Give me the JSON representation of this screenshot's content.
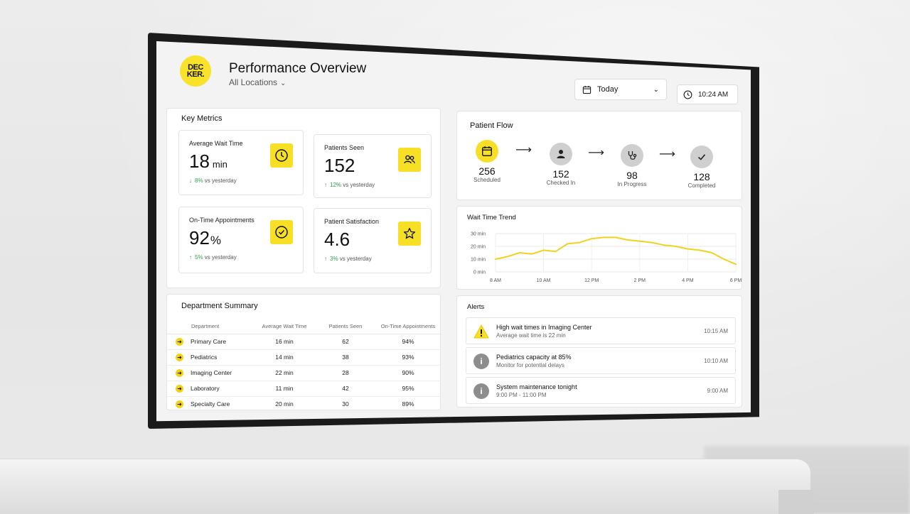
{
  "header": {
    "logo_line1": "DEC",
    "logo_line2": "KER.",
    "title": "Performance Overview",
    "location": "All Locations",
    "date_filter": "Today",
    "time": "10:24 AM"
  },
  "key_metrics": {
    "title": "Key Metrics",
    "cards": [
      {
        "label": "Average Wait Time",
        "value": "18",
        "unit": "min",
        "change": "8%",
        "direction": "down",
        "compare": "vs yesterday",
        "icon": "clock-icon"
      },
      {
        "label": "Patients Seen",
        "value": "152",
        "unit": "",
        "change": "12%",
        "direction": "up",
        "compare": "vs yesterday",
        "icon": "users-icon"
      },
      {
        "label": "On-Time Appointments",
        "value": "92",
        "unit": "%",
        "change": "5%",
        "direction": "up",
        "compare": "vs yesterday",
        "icon": "check-circle-icon"
      },
      {
        "label": "Patient Satisfaction",
        "value": "4.6",
        "unit": "",
        "change": "3%",
        "direction": "up",
        "compare": "vs yesterday",
        "icon": "star-icon"
      }
    ]
  },
  "department_summary": {
    "title": "Department Summary",
    "columns": [
      "Department",
      "Average Wait Time",
      "Patients Seen",
      "On-Time Appointments"
    ],
    "rows": [
      [
        "Primary Care",
        "16 min",
        "62",
        "94%"
      ],
      [
        "Pediatrics",
        "14 min",
        "38",
        "93%"
      ],
      [
        "Imaging Center",
        "22 min",
        "28",
        "90%"
      ],
      [
        "Laboratory",
        "11 min",
        "42",
        "95%"
      ],
      [
        "Specialty Care",
        "20 min",
        "30",
        "89%"
      ]
    ]
  },
  "patient_flow": {
    "title": "Patient Flow",
    "steps": [
      {
        "value": "256",
        "label": "Scheduled",
        "icon": "calendar-icon"
      },
      {
        "value": "152",
        "label": "Checked In",
        "icon": "person-icon"
      },
      {
        "value": "98",
        "label": "In Progress",
        "icon": "stethoscope-icon"
      },
      {
        "value": "128",
        "label": "Completed",
        "icon": "check-icon"
      }
    ]
  },
  "chart_data": {
    "type": "line",
    "title": "Wait Time Trend",
    "xlabel": "",
    "ylabel": "",
    "x_ticks": [
      "8 AM",
      "10 AM",
      "12 PM",
      "2 PM",
      "4 PM",
      "6 PM"
    ],
    "y_ticks": [
      "0 min",
      "10 min",
      "20 min",
      "30 min"
    ],
    "ylim": [
      0,
      30
    ],
    "x": [
      8,
      8.5,
      9,
      9.5,
      10,
      10.5,
      11,
      11.5,
      12,
      12.5,
      13,
      13.5,
      14,
      14.5,
      15,
      15.5,
      16,
      16.5,
      17,
      17.5,
      18
    ],
    "series": [
      {
        "name": "",
        "color": "#f2d21b",
        "values": [
          10,
          12,
          15,
          14,
          17,
          16,
          22,
          23,
          26,
          27,
          27,
          25,
          24,
          23,
          21,
          20,
          18,
          17,
          15,
          10,
          6
        ]
      }
    ],
    "grid": true
  },
  "alerts": {
    "title": "Alerts",
    "items": [
      {
        "type": "warning",
        "icon": "warning-icon",
        "title": "High wait times in Imaging Center",
        "sub": "Average wait time is 22 min",
        "time": "10:15 AM"
      },
      {
        "type": "info",
        "icon": "info-icon",
        "title": "Pediatrics capacity at 85%",
        "sub": "Monitor for potential delays",
        "time": "10:10 AM"
      },
      {
        "type": "info",
        "icon": "info-icon",
        "title": "System maintenance tonight",
        "sub": "9:00 PM - 11:00 PM",
        "time": "9:00 AM"
      }
    ]
  },
  "colors": {
    "accent": "#f7df25",
    "positive": "#2e9e4a",
    "frame": "#1b1b1b"
  }
}
